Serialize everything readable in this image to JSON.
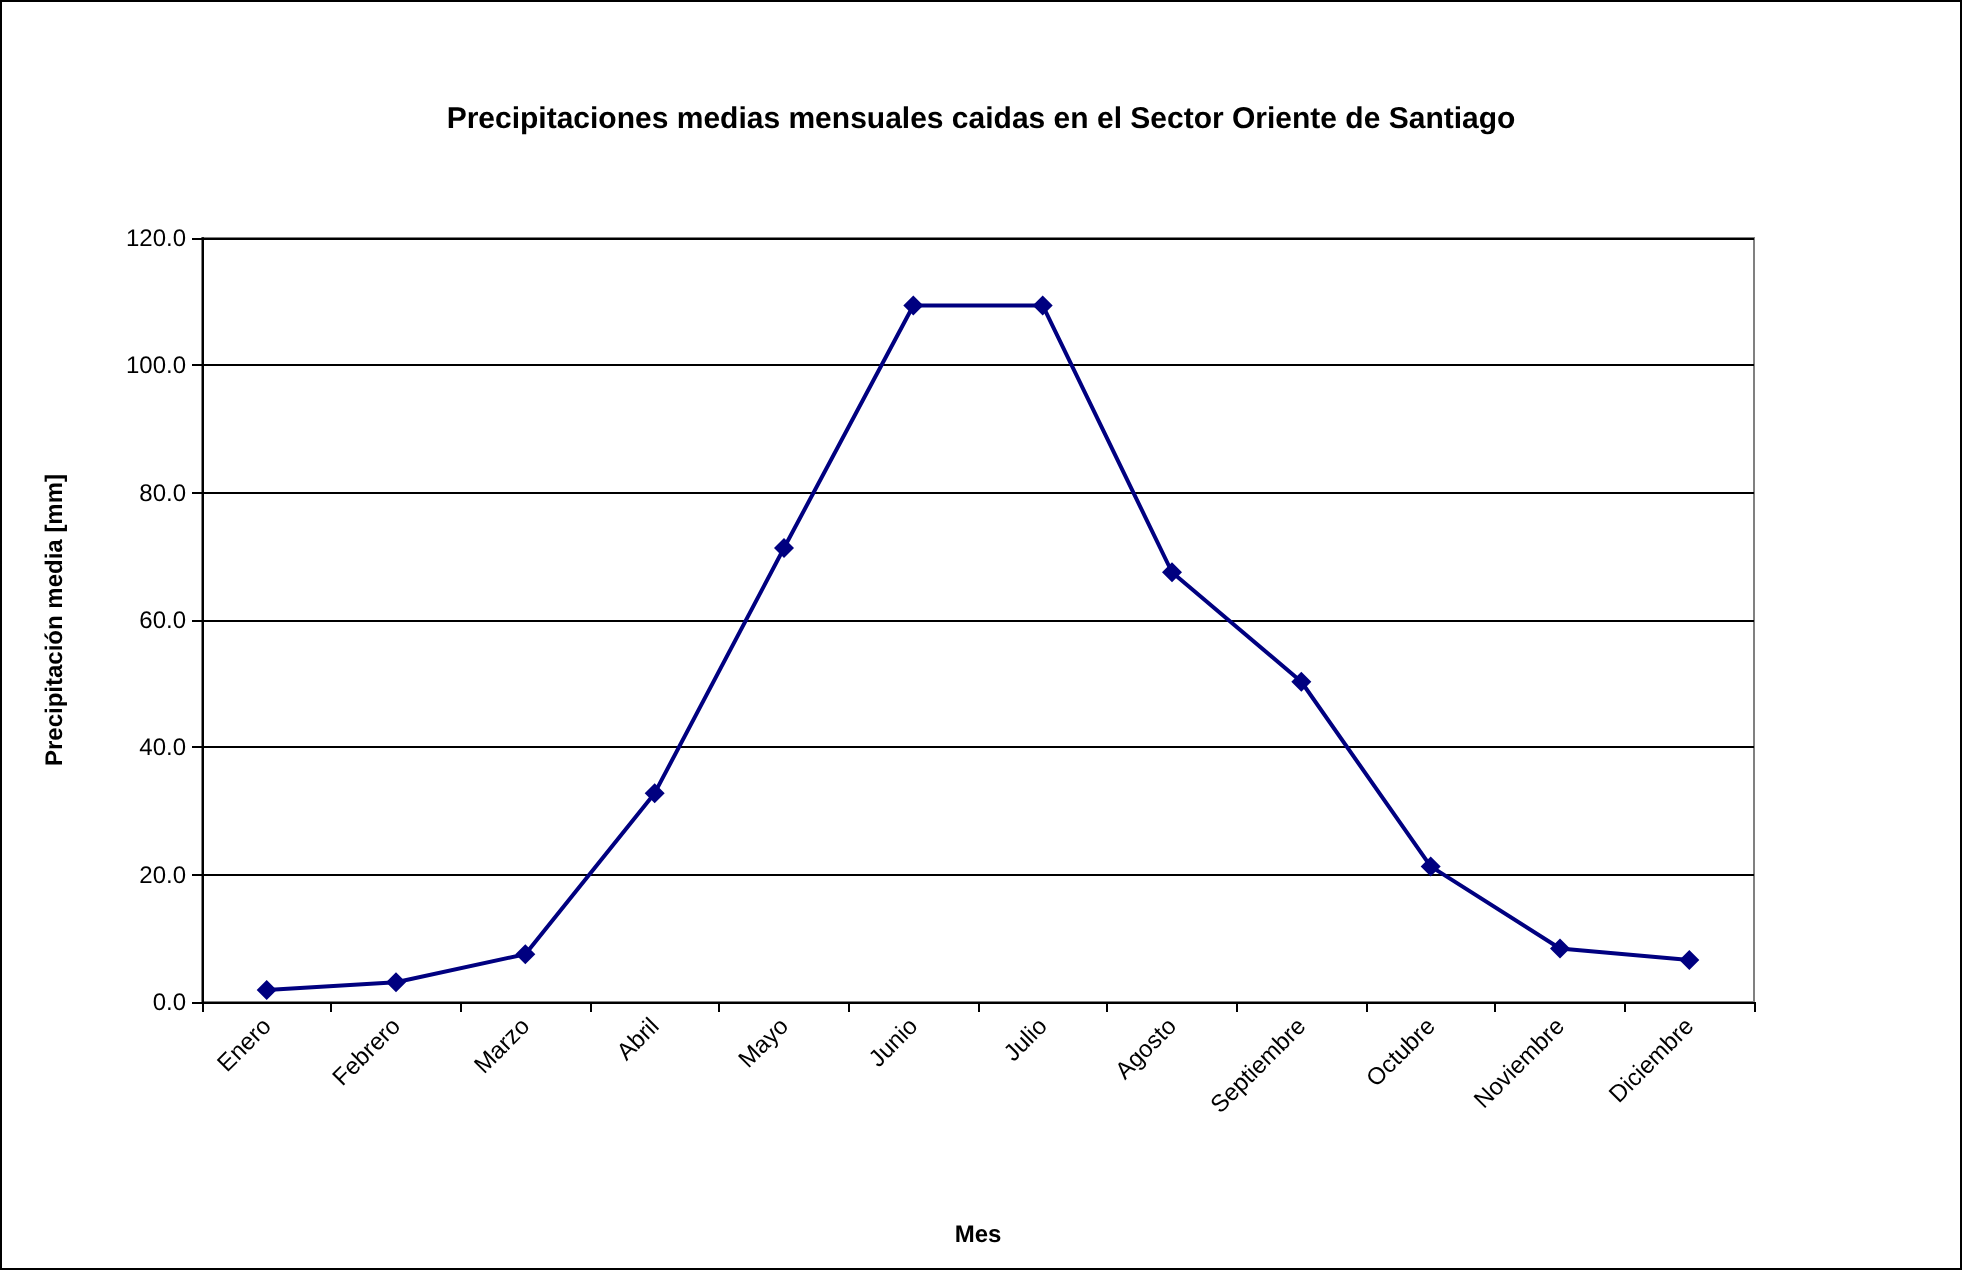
{
  "chart_data": {
    "type": "line",
    "title": "Precipitaciones medias mensuales caidas en el Sector Oriente de Santiago",
    "xlabel": "Mes",
    "ylabel": "Precipitación media [mm]",
    "categories": [
      "Enero",
      "Febrero",
      "Marzo",
      "Abril",
      "Mayo",
      "Junio",
      "Julio",
      "Agosto",
      "Septiembre",
      "Octubre",
      "Noviembre",
      "Diciembre"
    ],
    "series": [
      {
        "color": "#000080",
        "values": [
          1.9,
          3.1,
          7.5,
          32.8,
          71.3,
          109.4,
          109.4,
          67.5,
          50.3,
          21.3,
          8.4,
          6.6
        ]
      }
    ],
    "ylim": [
      0,
      120
    ],
    "yticks": [
      {
        "value": 0,
        "label": "0.0"
      },
      {
        "value": 20,
        "label": "20.0"
      },
      {
        "value": 40,
        "label": "40.0"
      },
      {
        "value": 60,
        "label": "60.0"
      },
      {
        "value": 80,
        "label": "80.0"
      },
      {
        "value": 100,
        "label": "100.0"
      },
      {
        "value": 120,
        "label": "120.0"
      }
    ],
    "grid": "y",
    "marker": "diamond",
    "line_style": "solid"
  }
}
